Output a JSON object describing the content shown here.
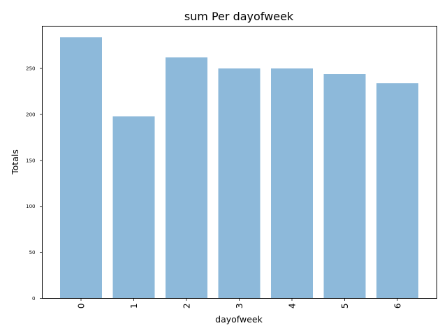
{
  "chart_data": {
    "type": "bar",
    "title": "sum Per dayofweek",
    "xlabel": "dayofweek",
    "ylabel": "Totals",
    "categories": [
      "0",
      "1",
      "2",
      "3",
      "4",
      "5",
      "6"
    ],
    "values": [
      284,
      198,
      262,
      250,
      250,
      244,
      234
    ],
    "ylim": [
      0,
      296
    ],
    "yticks": [
      0,
      50,
      100,
      150,
      200,
      250
    ],
    "bar_color": "#8db9da",
    "grid": false,
    "x_tick_rotation": 90
  }
}
